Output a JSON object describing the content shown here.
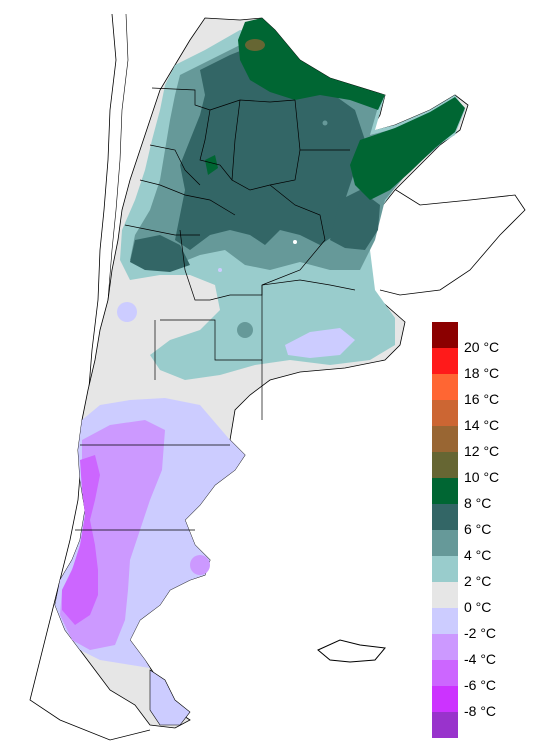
{
  "legend": {
    "bins": [
      {
        "label": "20 °C",
        "color": "#8b0000"
      },
      {
        "label": "18 °C",
        "color": "#ff1a1a"
      },
      {
        "label": "16 °C",
        "color": "#ff6633"
      },
      {
        "label": "14 °C",
        "color": "#cc6633"
      },
      {
        "label": "12 °C",
        "color": "#996633"
      },
      {
        "label": "10 °C",
        "color": "#666633"
      },
      {
        "label": "8 °C",
        "color": "#006633"
      },
      {
        "label": "6 °C",
        "color": "#336666"
      },
      {
        "label": "4 °C",
        "color": "#669999"
      },
      {
        "label": "2 °C",
        "color": "#99cccc"
      },
      {
        "label": "0 °C",
        "color": "#e6e6e6"
      },
      {
        "label": "-2 °C",
        "color": "#ccccff"
      },
      {
        "label": "-4 °C",
        "color": "#cc99ff"
      },
      {
        "label": "-6 °C",
        "color": "#cc66ff"
      },
      {
        "label": "-8 °C",
        "color": "#cc33ff"
      },
      {
        "label": "",
        "color": "#9933cc"
      }
    ]
  }
}
